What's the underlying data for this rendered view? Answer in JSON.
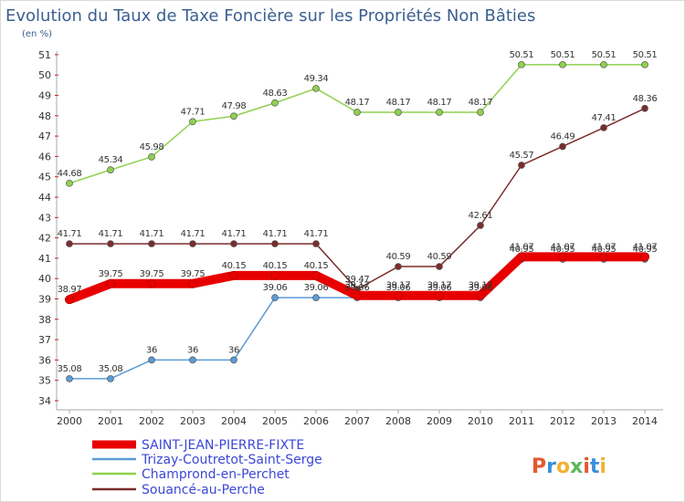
{
  "chart_data": {
    "type": "line",
    "title": "Evolution du Taux de Taxe Foncière sur les Propriétés Non Bâties",
    "subtitle": "(en %)",
    "x": [
      "2000",
      "2001",
      "2002",
      "2003",
      "2004",
      "2005",
      "2006",
      "2007",
      "2008",
      "2009",
      "2010",
      "2011",
      "2012",
      "2013",
      "2014"
    ],
    "ylim": [
      34,
      51
    ],
    "yticks": [
      "34",
      "35",
      "36",
      "37",
      "38",
      "39",
      "40",
      "41",
      "42",
      "43",
      "44",
      "45",
      "46",
      "47",
      "48",
      "49",
      "50",
      "51"
    ],
    "grid": false,
    "legend_position": "bottom-left",
    "series": [
      {
        "name": "SAINT-JEAN-PIERRE-FIXTE",
        "color": "#e80000",
        "values": [
          38.97,
          39.75,
          39.75,
          39.75,
          40.15,
          40.15,
          40.15,
          39.17,
          39.17,
          39.17,
          39.17,
          41.07,
          41.07,
          41.07,
          41.07
        ],
        "labels": [
          "38.97",
          "39.75",
          "39.75",
          "39.75",
          "40.15",
          "40.15",
          "40.15",
          "39.17",
          "39.17",
          "39.17",
          "39.17",
          "41.07",
          "41.07",
          "41.07",
          "41.07"
        ]
      },
      {
        "name": "Trizay-Coutretot-Saint-Serge",
        "color": "#5b9bd5",
        "values": [
          35.08,
          35.08,
          36,
          36,
          36,
          39.06,
          39.06,
          39.06,
          39.06,
          39.06,
          39.06,
          40.95,
          40.95,
          40.95,
          40.95
        ],
        "labels": [
          "35.08",
          "35.08",
          "36",
          "36",
          "36",
          "39.06",
          "39.06",
          "39.06",
          "39.06",
          "39.06",
          "39.06",
          "40.95",
          "40.95",
          "40.95",
          "40.95"
        ]
      },
      {
        "name": "Champrond-en-Perchet",
        "color": "#8fd14f",
        "values": [
          44.68,
          45.34,
          45.98,
          47.71,
          47.98,
          48.63,
          49.34,
          48.17,
          48.17,
          48.17,
          48.17,
          50.51,
          50.51,
          50.51,
          50.51
        ],
        "labels": [
          "44.68",
          "45.34",
          "45.98",
          "47.71",
          "47.98",
          "48.63",
          "49.34",
          "48.17",
          "48.17",
          "48.17",
          "48.17",
          "50.51",
          "50.51",
          "50.51",
          "50.51"
        ]
      },
      {
        "name": "Souancé-au-Perche",
        "color": "#7b2c2c",
        "values": [
          41.71,
          41.71,
          41.71,
          41.71,
          41.71,
          41.71,
          41.71,
          39.47,
          40.59,
          40.59,
          42.61,
          45.57,
          46.49,
          47.41,
          48.36
        ],
        "labels": [
          "41.71",
          "41.71",
          "41.71",
          "41.71",
          "41.71",
          "41.71",
          "41.71",
          "39.47",
          "40.59",
          "40.59",
          "42.61",
          "45.57",
          "46.49",
          "47.41",
          "48.36"
        ]
      }
    ]
  },
  "brand": {
    "text": "Proxiti",
    "colors": [
      "#e4572e",
      "#3a8fd9",
      "#f2b134",
      "#5bb85b",
      "#e4572e",
      "#3a8fd9",
      "#f2b134"
    ]
  }
}
